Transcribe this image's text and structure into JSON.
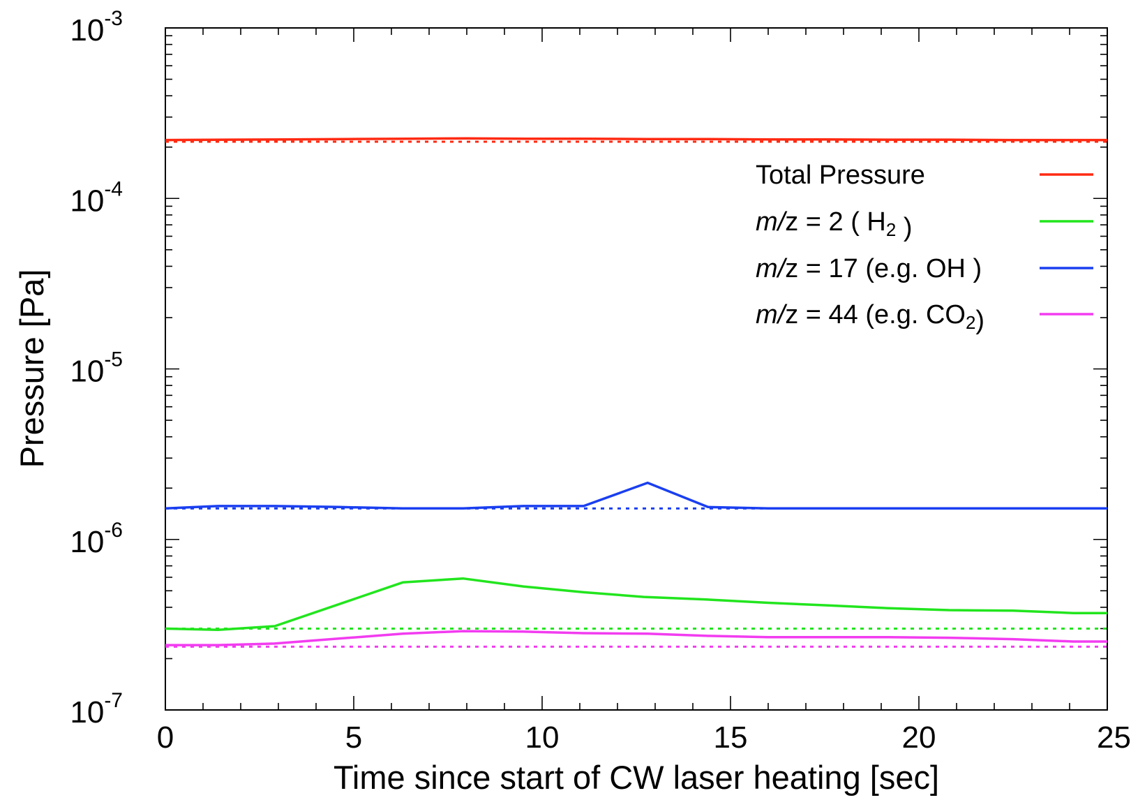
{
  "chart_data": {
    "type": "line",
    "xlabel": "Time since start of CW laser heating [sec]",
    "ylabel": "Pressure [Pa]",
    "xlim": [
      0,
      25
    ],
    "ylim": [
      1e-07,
      0.001
    ],
    "yscale": "log",
    "grid": false,
    "legend_position": "top-right",
    "x_ticks": [
      0,
      5,
      10,
      15,
      20,
      25
    ],
    "x_tick_labels": [
      "0",
      "5",
      "10",
      "15",
      "20",
      "25"
    ],
    "y_ticks": [
      {
        "value": 1e-07,
        "base": "10",
        "exp": "-7"
      },
      {
        "value": 1e-06,
        "base": "10",
        "exp": "-6"
      },
      {
        "value": 1e-05,
        "base": "10",
        "exp": "-5"
      },
      {
        "value": 0.0001,
        "base": "10",
        "exp": "-4"
      },
      {
        "value": 0.001,
        "base": "10",
        "exp": "-3"
      }
    ],
    "series": [
      {
        "name": "Total Pressure",
        "color": "#ff2a12",
        "x": [
          0,
          1.6,
          3.2,
          4.8,
          6.4,
          8,
          9.6,
          11.2,
          12.8,
          14.4,
          16,
          17.6,
          19.2,
          20.8,
          22.4,
          24,
          25
        ],
        "y": [
          0.00022,
          0.000221,
          0.000222,
          0.000223,
          0.000224,
          0.000225,
          0.000224,
          0.000224,
          0.000223,
          0.000223,
          0.000222,
          0.000222,
          0.000221,
          0.000221,
          0.00022,
          0.00022,
          0.00022
        ],
        "baseline": 0.000215
      },
      {
        "name": "H2",
        "color": "#22e51e",
        "x": [
          0,
          1.4,
          2.9,
          6.3,
          7.9,
          9.5,
          11.1,
          12.7,
          14.3,
          16,
          17.6,
          19.2,
          20.8,
          22.5,
          24.1,
          25
        ],
        "y": [
          3e-07,
          2.95e-07,
          3.1e-07,
          5.6e-07,
          5.9e-07,
          5.3e-07,
          4.9e-07,
          4.6e-07,
          4.45e-07,
          4.25e-07,
          4.1e-07,
          3.95e-07,
          3.85e-07,
          3.82e-07,
          3.7e-07,
          3.7e-07
        ],
        "baseline": 3e-07
      },
      {
        "name": "OH",
        "color": "#1a3ff0",
        "x": [
          0,
          1.4,
          2.9,
          4.6,
          6.3,
          7.9,
          9.5,
          11.1,
          12.8,
          14.4,
          16,
          17.6,
          19.2,
          20.8,
          22.5,
          24.1,
          25
        ],
        "y": [
          1.52e-06,
          1.57e-06,
          1.57e-06,
          1.55e-06,
          1.52e-06,
          1.52e-06,
          1.57e-06,
          1.57e-06,
          2.15e-06,
          1.55e-06,
          1.52e-06,
          1.52e-06,
          1.52e-06,
          1.52e-06,
          1.52e-06,
          1.52e-06,
          1.52e-06
        ],
        "baseline": 1.52e-06
      },
      {
        "name": "CO2",
        "color": "#f23cf0",
        "x": [
          0,
          1.4,
          2.9,
          4.6,
          6.3,
          7.9,
          9.5,
          11.1,
          12.8,
          14.4,
          16,
          17.6,
          19.2,
          20.8,
          22.5,
          24.1,
          25
        ],
        "y": [
          2.4e-07,
          2.4e-07,
          2.45e-07,
          2.62e-07,
          2.8e-07,
          2.9e-07,
          2.88e-07,
          2.82e-07,
          2.8e-07,
          2.72e-07,
          2.67e-07,
          2.67e-07,
          2.67e-07,
          2.65e-07,
          2.6e-07,
          2.52e-07,
          2.52e-07
        ],
        "baseline": 2.35e-07
      }
    ],
    "legend": [
      {
        "series": "Total Pressure",
        "parts": [
          {
            "t": "Total Pressure",
            "style": "normal"
          }
        ]
      },
      {
        "series": "H2",
        "parts": [
          {
            "t": "m/",
            "style": "italic"
          },
          {
            "t": "z = 2   ( H",
            "style": "normal"
          },
          {
            "t": "2",
            "style": "sub"
          },
          {
            "t": " )",
            "style": "normal"
          }
        ]
      },
      {
        "series": "OH",
        "parts": [
          {
            "t": "m/",
            "style": "italic"
          },
          {
            "t": "z = 17 (e.g. OH )",
            "style": "normal"
          }
        ]
      },
      {
        "series": "CO2",
        "parts": [
          {
            "t": "m/",
            "style": "italic"
          },
          {
            "t": "z = 44 (e.g. CO",
            "style": "normal"
          },
          {
            "t": "2",
            "style": "sub"
          },
          {
            "t": ")",
            "style": "normal"
          }
        ]
      }
    ]
  }
}
